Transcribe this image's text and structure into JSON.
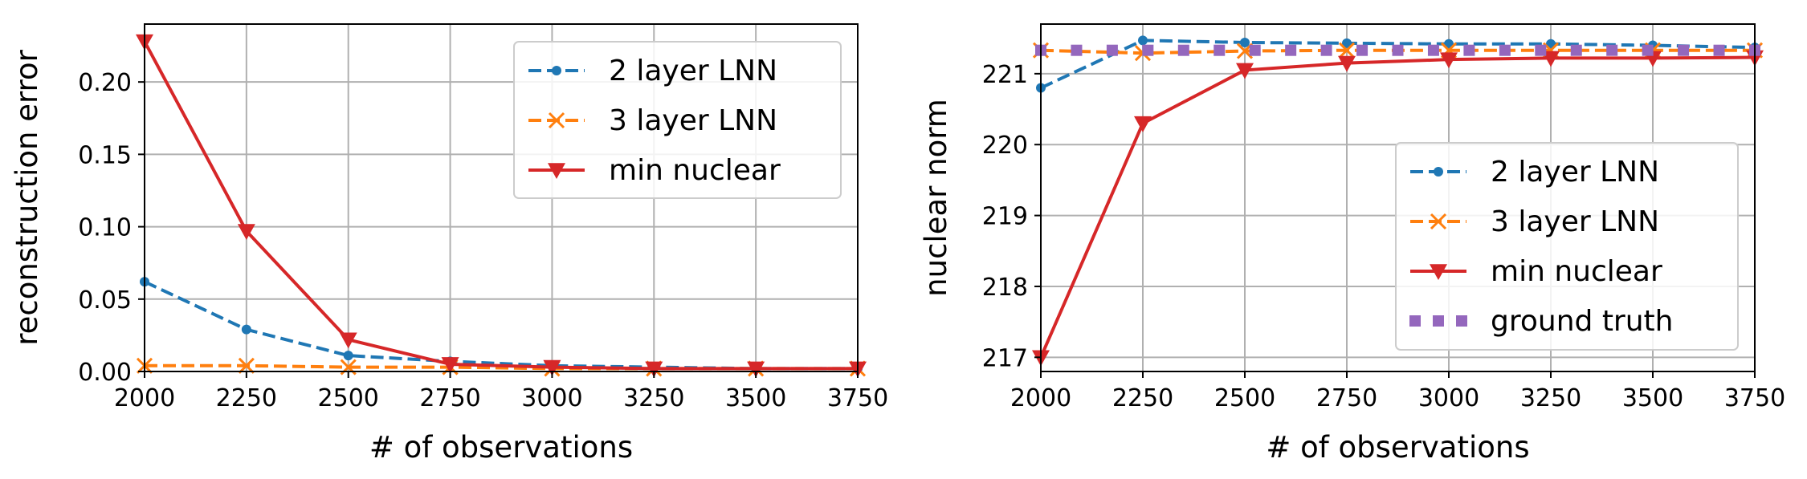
{
  "chart_data": [
    {
      "type": "line",
      "title": "",
      "xlabel": "# of observations",
      "ylabel": "reconstruction error",
      "x": [
        2000,
        2250,
        2500,
        2750,
        3000,
        3250,
        3500,
        3750
      ],
      "xlim": [
        2000,
        3750
      ],
      "ylim": [
        0,
        0.24
      ],
      "xticks": [
        2000,
        2250,
        2500,
        2750,
        3000,
        3250,
        3500,
        3750
      ],
      "yticks": [
        0,
        0.05,
        0.1,
        0.15,
        0.2
      ],
      "ytick_labels": [
        "0.00",
        "0.05",
        "0.10",
        "0.15",
        "0.20"
      ],
      "grid": true,
      "legend_position": "upper-right",
      "series": [
        {
          "name": "2 layer LNN",
          "color": "#1f77b4",
          "linestyle": "dashed",
          "marker": "dot",
          "values": [
            0.062,
            0.029,
            0.011,
            0.007,
            0.004,
            0.003,
            0.002,
            0.002
          ]
        },
        {
          "name": "3 layer LNN",
          "color": "#ff7f0e",
          "linestyle": "dashed",
          "marker": "x",
          "values": [
            0.004,
            0.004,
            0.003,
            0.003,
            0.002,
            0.002,
            0.002,
            0.002
          ]
        },
        {
          "name": "min nuclear",
          "color": "#d62728",
          "linestyle": "solid",
          "marker": "triangle-down",
          "values": [
            0.228,
            0.097,
            0.022,
            0.005,
            0.003,
            0.002,
            0.002,
            0.002
          ]
        }
      ]
    },
    {
      "type": "line",
      "title": "",
      "xlabel": "# of observations",
      "ylabel": "nuclear norm",
      "x": [
        2000,
        2250,
        2500,
        2750,
        3000,
        3250,
        3500,
        3750
      ],
      "xlim": [
        2000,
        3750
      ],
      "ylim": [
        216.8,
        221.7
      ],
      "xticks": [
        2000,
        2250,
        2500,
        2750,
        3000,
        3250,
        3500,
        3750
      ],
      "yticks": [
        217,
        218,
        219,
        220,
        221
      ],
      "ytick_labels": [
        "217",
        "218",
        "219",
        "220",
        "221"
      ],
      "grid": true,
      "legend_position": "lower-right",
      "series": [
        {
          "name": "2 layer LNN",
          "color": "#1f77b4",
          "linestyle": "dashed",
          "marker": "dot",
          "values": [
            220.8,
            221.47,
            221.44,
            221.43,
            221.42,
            221.42,
            221.4,
            221.37
          ]
        },
        {
          "name": "3 layer LNN",
          "color": "#ff7f0e",
          "linestyle": "dashed",
          "marker": "x",
          "values": [
            221.33,
            221.29,
            221.32,
            221.33,
            221.33,
            221.33,
            221.33,
            221.33
          ]
        },
        {
          "name": "min nuclear",
          "color": "#d62728",
          "linestyle": "solid",
          "marker": "triangle-down",
          "values": [
            217.0,
            220.3,
            221.05,
            221.15,
            221.2,
            221.22,
            221.22,
            221.23
          ]
        },
        {
          "name": "ground truth",
          "color": "#9467bd",
          "linestyle": "dotted-square",
          "marker": "none",
          "values": [
            221.33,
            221.33,
            221.33,
            221.33,
            221.33,
            221.33,
            221.33,
            221.33
          ]
        }
      ]
    }
  ]
}
